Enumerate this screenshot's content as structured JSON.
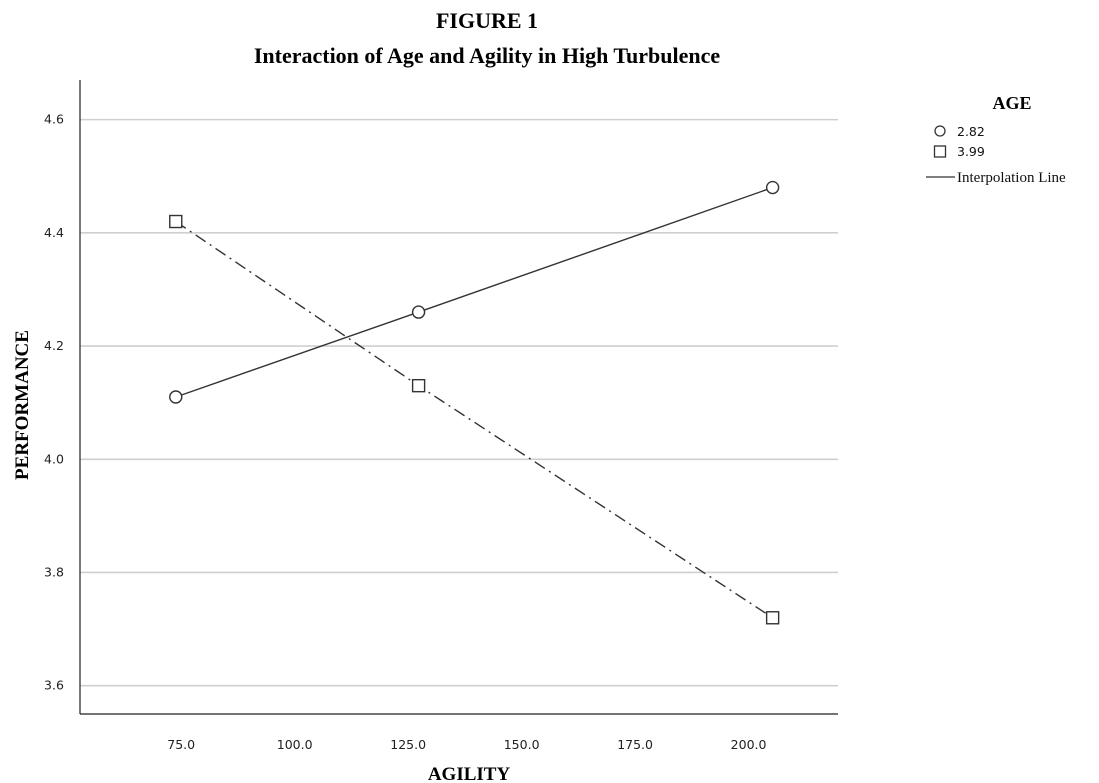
{
  "chart_data": {
    "type": "line",
    "title_line1": "FIGURE 1",
    "title_line2": "Interaction of Age and Agility in High Turbulence",
    "xlabel": "AGILITY",
    "ylabel": "PERFORMANCE",
    "xlim": [
      52.7,
      219.7
    ],
    "ylim": [
      3.55,
      4.67
    ],
    "x_ticks": [
      75.0,
      100.0,
      125.0,
      150.0,
      175.0,
      200.0
    ],
    "x_tick_labels": [
      "75.0",
      "100.0",
      "125.0",
      "150.0",
      "175.0",
      "200.0"
    ],
    "y_ticks": [
      3.6,
      3.8,
      4.0,
      4.2,
      4.4,
      4.6
    ],
    "y_tick_labels": [
      "3.6",
      "3.8",
      "4.0",
      "4.2",
      "4.4",
      "4.6"
    ],
    "grid": "horizontal",
    "legend": {
      "title": "AGE",
      "placement": "top-right",
      "interpolation_label": "Interpolation Line"
    },
    "series": [
      {
        "name": "2.82",
        "marker": "circle",
        "line_style": "solid",
        "x": [
          73.8,
          127.3,
          205.3
        ],
        "y": [
          4.11,
          4.26,
          4.48
        ]
      },
      {
        "name": "3.99",
        "marker": "square",
        "line_style": "dash-dot",
        "x": [
          73.8,
          127.3,
          205.3
        ],
        "y": [
          4.42,
          4.13,
          3.72
        ]
      }
    ],
    "colors": {
      "line": "#333333",
      "grid": "#cfcfcf",
      "axis": "#222222",
      "marker_fill": "#ffffff"
    }
  }
}
